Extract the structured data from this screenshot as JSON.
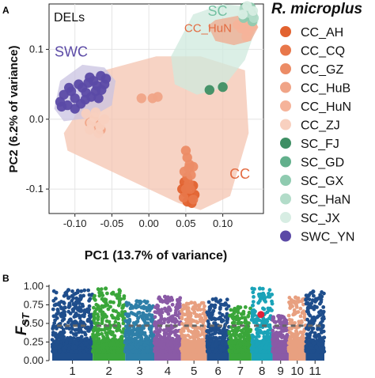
{
  "panel_a_label": "A",
  "panel_b_label": "B",
  "chart_data": [
    {
      "type": "scatter",
      "panel": "A",
      "title": "DELs",
      "xlabel": "PC1 (13.7% of variance)",
      "ylabel": "PC2 (6.2% of variance)",
      "xlim": [
        -0.135,
        0.155
      ],
      "ylim": [
        -0.135,
        0.165
      ],
      "xticks": [
        "-0.10",
        "-0.05",
        "0.00",
        "0.05",
        "0.10"
      ],
      "xtick_values": [
        -0.1,
        -0.05,
        0.0,
        0.05,
        0.1
      ],
      "yticks": [
        "-0.1",
        "0.0",
        "0.1"
      ],
      "ytick_values": [
        -0.1,
        0.0,
        0.1
      ],
      "grid": true,
      "legend_title": "R. microplus",
      "legend_position": "right",
      "group_labels": [
        {
          "text": "SC",
          "x": 0.093,
          "y": 0.148,
          "color": "#75c1a3"
        },
        {
          "text": "CC_HuN",
          "x": 0.08,
          "y": 0.125,
          "color": "#e36b41"
        },
        {
          "text": "SWC",
          "x": -0.105,
          "y": 0.09,
          "color": "#5b4aa6"
        },
        {
          "text": "CC",
          "x": 0.123,
          "y": -0.085,
          "color": "#e36b41"
        }
      ],
      "regions": [
        {
          "name": "CC",
          "color": "#f4c4b0",
          "points": [
            [
              -0.115,
              -0.02
            ],
            [
              -0.06,
              0.07
            ],
            [
              0.01,
              0.09
            ],
            [
              0.07,
              0.09
            ],
            [
              0.13,
              0.07
            ],
            [
              0.135,
              -0.02
            ],
            [
              0.11,
              -0.11
            ],
            [
              0.07,
              -0.13
            ],
            [
              0.04,
              -0.12
            ],
            [
              -0.06,
              -0.07
            ],
            [
              -0.11,
              -0.045
            ]
          ]
        },
        {
          "name": "SC",
          "color": "#cfe9de",
          "points": [
            [
              0.03,
              0.09
            ],
            [
              0.06,
              0.15
            ],
            [
              0.1,
              0.165
            ],
            [
              0.142,
              0.16
            ],
            [
              0.148,
              0.14
            ],
            [
              0.13,
              0.085
            ],
            [
              0.1,
              0.045
            ],
            [
              0.065,
              0.035
            ],
            [
              0.035,
              0.05
            ]
          ]
        },
        {
          "name": "CC_HuN",
          "color": "#f0a98d",
          "points": [
            [
              0.08,
              0.134
            ],
            [
              0.09,
              0.142
            ],
            [
              0.12,
              0.148
            ],
            [
              0.14,
              0.146
            ],
            [
              0.148,
              0.132
            ],
            [
              0.138,
              0.112
            ],
            [
              0.115,
              0.106
            ],
            [
              0.09,
              0.112
            ]
          ]
        },
        {
          "name": "SWC",
          "color": "#c9c3e2",
          "points": [
            [
              -0.128,
              0.015
            ],
            [
              -0.12,
              0.055
            ],
            [
              -0.09,
              0.078
            ],
            [
              -0.06,
              0.074
            ],
            [
              -0.045,
              0.055
            ],
            [
              -0.05,
              0.02
            ],
            [
              -0.08,
              0.002
            ],
            [
              -0.115,
              -0.003
            ]
          ]
        }
      ],
      "series": [
        {
          "name": "CC_AH",
          "color": "#e2622f",
          "points": [
            [
              0.045,
              -0.1
            ],
            [
              0.05,
              -0.105
            ],
            [
              0.055,
              -0.11
            ],
            [
              0.06,
              -0.095
            ],
            [
              0.052,
              -0.118
            ],
            [
              0.058,
              -0.12
            ],
            [
              0.048,
              -0.09
            ],
            [
              0.062,
              -0.108
            ]
          ]
        },
        {
          "name": "CC_CQ",
          "color": "#e8774a",
          "points": [
            [
              0.05,
              -0.1
            ],
            [
              0.054,
              -0.092
            ],
            [
              0.06,
              -0.115
            ],
            [
              0.047,
              -0.112
            ],
            [
              0.056,
              -0.1
            ],
            [
              0.052,
              -0.083
            ]
          ]
        },
        {
          "name": "CC_GZ",
          "color": "#ec8c66",
          "points": [
            [
              0.05,
              -0.045
            ],
            [
              0.052,
              -0.055
            ],
            [
              0.055,
              -0.065
            ],
            [
              0.048,
              -0.075
            ],
            [
              0.057,
              -0.08
            ],
            [
              0.054,
              -0.07
            ],
            [
              0.06,
              -0.068
            ]
          ]
        },
        {
          "name": "CC_HuB",
          "color": "#f0a487",
          "points": [
            [
              -0.01,
              0.03
            ],
            [
              0.012,
              0.032
            ],
            [
              0.005,
              0.03
            ],
            [
              -0.075,
              0.0
            ],
            [
              -0.07,
              -0.01
            ],
            [
              -0.08,
              -0.005
            ],
            [
              -0.065,
              -0.015
            ]
          ]
        },
        {
          "name": "CC_HuN",
          "color": "#f5b39a",
          "points": [
            [
              0.12,
              0.135
            ],
            [
              0.125,
              0.13
            ],
            [
              0.13,
              0.128
            ],
            [
              0.135,
              0.125
            ],
            [
              0.128,
              0.138
            ],
            [
              0.14,
              0.133
            ],
            [
              0.132,
              0.118
            ],
            [
              0.137,
              0.142
            ]
          ]
        },
        {
          "name": "CC_ZJ",
          "color": "#f8d0bf",
          "points": [
            [
              -0.085,
              0.008
            ],
            [
              -0.078,
              -0.005
            ],
            [
              -0.072,
              0.01
            ],
            [
              -0.068,
              -0.02
            ],
            [
              -0.08,
              -0.015
            ],
            [
              -0.06,
              0.0
            ],
            [
              -0.074,
              0.003
            ],
            [
              -0.066,
              -0.01
            ]
          ]
        },
        {
          "name": "SC_FJ",
          "color": "#3e8f64",
          "points": [
            [
              0.082,
              0.042
            ],
            [
              0.13,
              0.16
            ],
            [
              0.1,
              0.046
            ]
          ]
        },
        {
          "name": "SC_GD",
          "color": "#62b08c",
          "points": [
            [
              0.135,
              0.155
            ],
            [
              0.14,
              0.15
            ],
            [
              0.133,
              0.148
            ]
          ]
        },
        {
          "name": "SC_GX",
          "color": "#8fcbb0",
          "points": [
            [
              0.128,
              0.145
            ],
            [
              0.138,
              0.16
            ],
            [
              0.14,
              0.14
            ]
          ]
        },
        {
          "name": "SC_HaN",
          "color": "#b2dcc9",
          "points": [
            [
              0.136,
              0.152
            ],
            [
              0.142,
              0.145
            ],
            [
              0.129,
              0.158
            ]
          ]
        },
        {
          "name": "SC_JX",
          "color": "#d7ede3",
          "points": [
            [
              0.133,
              0.162
            ],
            [
              0.141,
              0.155
            ],
            [
              0.127,
              0.15
            ]
          ]
        },
        {
          "name": "SWC_YN",
          "color": "#5b4aa6",
          "points": [
            [
              -0.12,
              0.025
            ],
            [
              -0.115,
              0.035
            ],
            [
              -0.11,
              0.02
            ],
            [
              -0.105,
              0.04
            ],
            [
              -0.1,
              0.03
            ],
            [
              -0.095,
              0.05
            ],
            [
              -0.09,
              0.045
            ],
            [
              -0.085,
              0.038
            ],
            [
              -0.08,
              0.06
            ],
            [
              -0.075,
              0.055
            ],
            [
              -0.07,
              0.048
            ],
            [
              -0.065,
              0.062
            ],
            [
              -0.06,
              0.05
            ],
            [
              -0.1,
              0.015
            ],
            [
              -0.092,
              0.022
            ],
            [
              -0.086,
              0.028
            ],
            [
              -0.078,
              0.032
            ],
            [
              -0.072,
              0.04
            ],
            [
              -0.068,
              0.03
            ],
            [
              -0.108,
              0.045
            ],
            [
              -0.118,
              0.018
            ],
            [
              -0.082,
              0.052
            ],
            [
              -0.064,
              0.042
            ],
            [
              -0.058,
              0.058
            ]
          ]
        }
      ]
    },
    {
      "type": "scatter",
      "panel": "B",
      "title": "",
      "xlabel": "",
      "ylabel": "FST",
      "ylabel_main": "F",
      "ylabel_sub": "ST",
      "ylim": [
        0.0,
        1.0
      ],
      "yticks": [
        "0.00",
        "0.25",
        "0.50",
        "0.75",
        "1.00"
      ],
      "ytick_values": [
        0.0,
        0.25,
        0.5,
        0.75,
        1.0
      ],
      "threshold": 0.47,
      "highlight": {
        "chromosome": "8",
        "value": 0.62,
        "color": "#e0203a"
      },
      "chromosomes": [
        {
          "name": "1",
          "color": "#1f4e8c",
          "length": 1.0,
          "peak": 0.95
        },
        {
          "name": "2",
          "color": "#3aa63a",
          "length": 0.8,
          "peak": 0.97
        },
        {
          "name": "3",
          "color": "#2e7fa8",
          "length": 0.72,
          "peak": 0.8
        },
        {
          "name": "4",
          "color": "#8a5aa6",
          "length": 0.66,
          "peak": 0.86
        },
        {
          "name": "5",
          "color": "#e8a080",
          "length": 0.64,
          "peak": 0.78
        },
        {
          "name": "6",
          "color": "#1f4e8c",
          "length": 0.55,
          "peak": 0.83
        },
        {
          "name": "7",
          "color": "#3aa63a",
          "length": 0.55,
          "peak": 0.72
        },
        {
          "name": "8",
          "color": "#1aa3b8",
          "length": 0.52,
          "peak": 0.97
        },
        {
          "name": "9",
          "color": "#8a5aa6",
          "length": 0.4,
          "peak": 0.6
        },
        {
          "name": "10",
          "color": "#e8a080",
          "length": 0.42,
          "peak": 0.85
        },
        {
          "name": "11",
          "color": "#1f4e8c",
          "length": 0.46,
          "peak": 0.93
        }
      ]
    }
  ]
}
